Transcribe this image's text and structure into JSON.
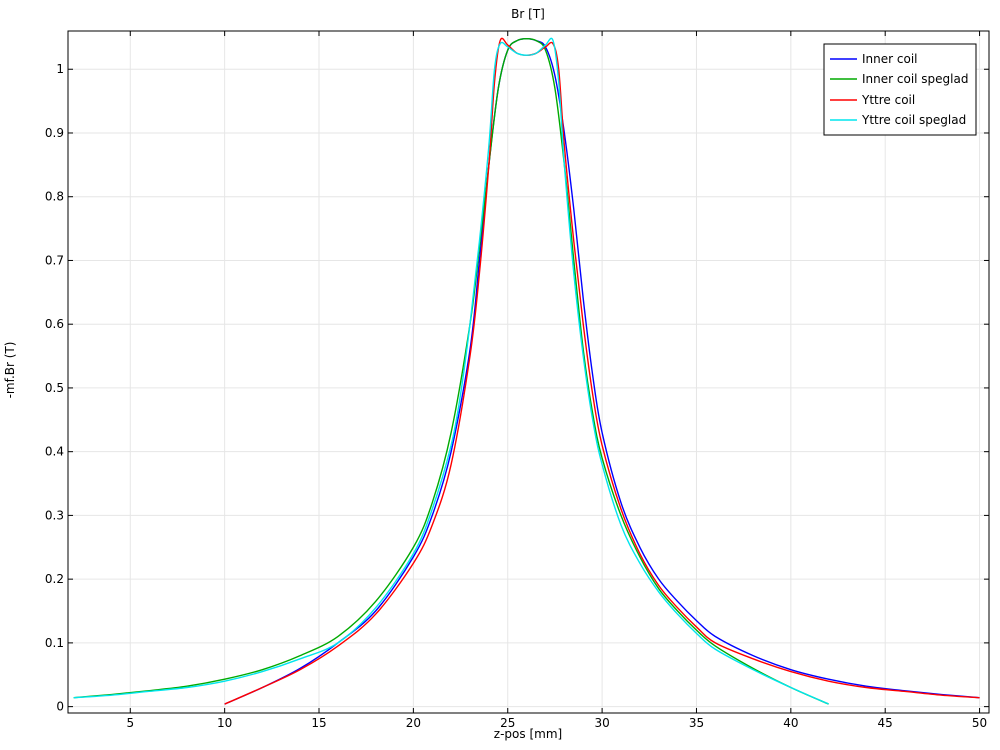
{
  "chart_data": {
    "type": "line",
    "title": "Br [T]",
    "xlabel": "z-pos [mm]",
    "ylabel": "-mf.Br (T)",
    "xlim": [
      1.7,
      50.5
    ],
    "ylim": [
      -0.01,
      1.06
    ],
    "xticks": [
      5,
      10,
      15,
      20,
      25,
      30,
      35,
      40,
      45,
      50
    ],
    "yticks": [
      0,
      0.1,
      0.2,
      0.3,
      0.4,
      0.5,
      0.6,
      0.7,
      0.8,
      0.9,
      1
    ],
    "ytick_labels": [
      "0",
      "0.1",
      "0.2",
      "0.3",
      "0.4",
      "0.5",
      "0.6",
      "0.7",
      "0.8",
      "0.9",
      "1"
    ],
    "grid": true,
    "legend_position": "top-right",
    "series": [
      {
        "name": "Inner coil",
        "color": "#0000ff",
        "x": [
          10,
          12,
          14,
          16,
          18,
          20,
          21,
          22,
          23,
          23.5,
          24,
          24.5,
          25,
          25.5,
          26,
          26.5,
          27,
          27.5,
          28,
          28.5,
          29,
          29.5,
          30,
          31,
          32,
          33,
          34,
          35,
          36,
          38,
          40,
          42,
          44,
          46,
          48,
          50
        ],
        "y": [
          0.004,
          0.03,
          0.06,
          0.1,
          0.15,
          0.235,
          0.3,
          0.4,
          0.56,
          0.7,
          0.85,
          0.97,
          1.03,
          1.045,
          1.048,
          1.045,
          1.035,
          0.99,
          0.9,
          0.78,
          0.64,
          0.52,
          0.43,
          0.32,
          0.25,
          0.2,
          0.165,
          0.135,
          0.11,
          0.08,
          0.058,
          0.043,
          0.032,
          0.025,
          0.019,
          0.014
        ]
      },
      {
        "name": "Inner coil speglad",
        "color": "#00aa00",
        "x": [
          2,
          4,
          6,
          8,
          10,
          12,
          14,
          16,
          18,
          20,
          21,
          22,
          23,
          23.5,
          24,
          24.5,
          25,
          25.5,
          26,
          26.5,
          27,
          27.5,
          28,
          28.5,
          29,
          29.5,
          30,
          31,
          32,
          33,
          34,
          35,
          36,
          38,
          40,
          42
        ],
        "y": [
          0.014,
          0.019,
          0.025,
          0.032,
          0.043,
          0.058,
          0.08,
          0.11,
          0.165,
          0.25,
          0.32,
          0.43,
          0.6,
          0.72,
          0.85,
          0.97,
          1.03,
          1.045,
          1.048,
          1.045,
          1.03,
          0.97,
          0.85,
          0.7,
          0.56,
          0.46,
          0.39,
          0.3,
          0.235,
          0.185,
          0.15,
          0.12,
          0.095,
          0.06,
          0.03,
          0.004
        ]
      },
      {
        "name": "Yttre coil",
        "color": "#ff0000",
        "x": [
          10,
          12,
          14,
          16,
          18,
          20,
          21,
          22,
          23,
          23.5,
          24,
          24.3,
          24.6,
          25,
          25.5,
          26,
          26.5,
          27,
          27.4,
          27.7,
          28,
          28.5,
          29,
          29.5,
          30,
          31,
          32,
          33,
          34,
          35,
          36,
          38,
          40,
          42,
          44,
          46,
          48,
          50
        ],
        "y": [
          0.004,
          0.03,
          0.058,
          0.095,
          0.145,
          0.225,
          0.285,
          0.38,
          0.55,
          0.68,
          0.85,
          0.98,
          1.045,
          1.038,
          1.025,
          1.022,
          1.025,
          1.035,
          1.04,
          1.0,
          0.88,
          0.73,
          0.6,
          0.49,
          0.41,
          0.31,
          0.24,
          0.19,
          0.155,
          0.125,
          0.1,
          0.075,
          0.055,
          0.04,
          0.03,
          0.024,
          0.018,
          0.014
        ]
      },
      {
        "name": "Yttre coil speglad",
        "color": "#00e5ee",
        "x": [
          2,
          4,
          6,
          8,
          10,
          12,
          14,
          16,
          18,
          20,
          21,
          22,
          22.5,
          23,
          23.5,
          24,
          24.3,
          24.6,
          25,
          25.5,
          26,
          26.5,
          27,
          27.4,
          27.7,
          28,
          28.5,
          29,
          29.5,
          30,
          31,
          32,
          33,
          34,
          35,
          36,
          38,
          40,
          42
        ],
        "y": [
          0.014,
          0.018,
          0.024,
          0.03,
          0.04,
          0.055,
          0.075,
          0.1,
          0.155,
          0.24,
          0.31,
          0.41,
          0.49,
          0.6,
          0.73,
          0.88,
          1.0,
          1.04,
          1.035,
          1.025,
          1.022,
          1.025,
          1.038,
          1.045,
          0.98,
          0.85,
          0.68,
          0.55,
          0.45,
          0.38,
          0.285,
          0.225,
          0.18,
          0.145,
          0.115,
          0.09,
          0.058,
          0.03,
          0.004
        ]
      }
    ]
  }
}
